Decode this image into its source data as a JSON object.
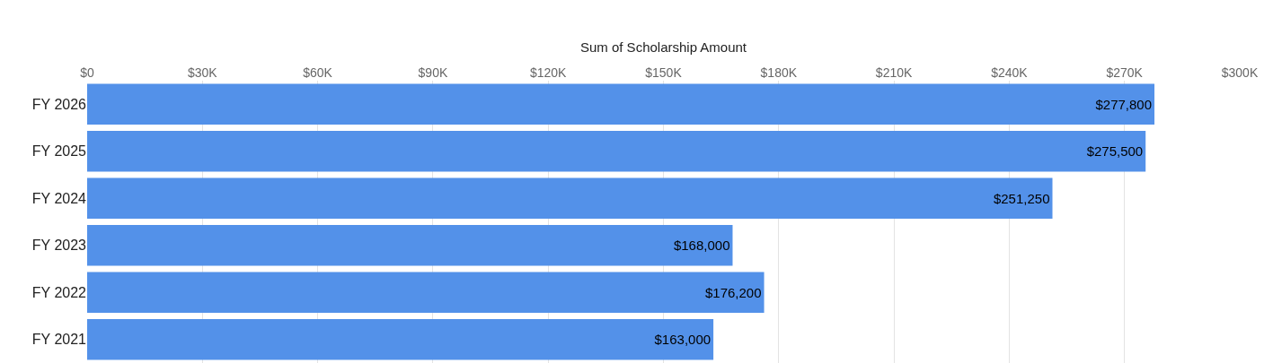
{
  "chart_data": {
    "type": "bar",
    "orientation": "horizontal",
    "xlabel": "Sum of Scholarship Amount",
    "categories": [
      "FY 2026",
      "FY 2025",
      "FY 2024",
      "FY 2023",
      "FY 2022",
      "FY 2021"
    ],
    "values": [
      277800,
      275500,
      251250,
      168000,
      176200,
      163000
    ],
    "value_labels": [
      "$277,800",
      "$275,500",
      "$251,250",
      "$168,000",
      "$176,200",
      "$163,000"
    ],
    "color": "#5391e9",
    "xlim": [
      0,
      300000
    ],
    "xticks": [
      {
        "value": 0,
        "label": "$0"
      },
      {
        "value": 30000,
        "label": "$30K"
      },
      {
        "value": 60000,
        "label": "$60K"
      },
      {
        "value": 90000,
        "label": "$90K"
      },
      {
        "value": 120000,
        "label": "$120K"
      },
      {
        "value": 150000,
        "label": "$150K"
      },
      {
        "value": 180000,
        "label": "$180K"
      },
      {
        "value": 210000,
        "label": "$210K"
      },
      {
        "value": 240000,
        "label": "$240K"
      },
      {
        "value": 270000,
        "label": "$270K"
      },
      {
        "value": 300000,
        "label": "$300K"
      }
    ],
    "grid": "x"
  }
}
